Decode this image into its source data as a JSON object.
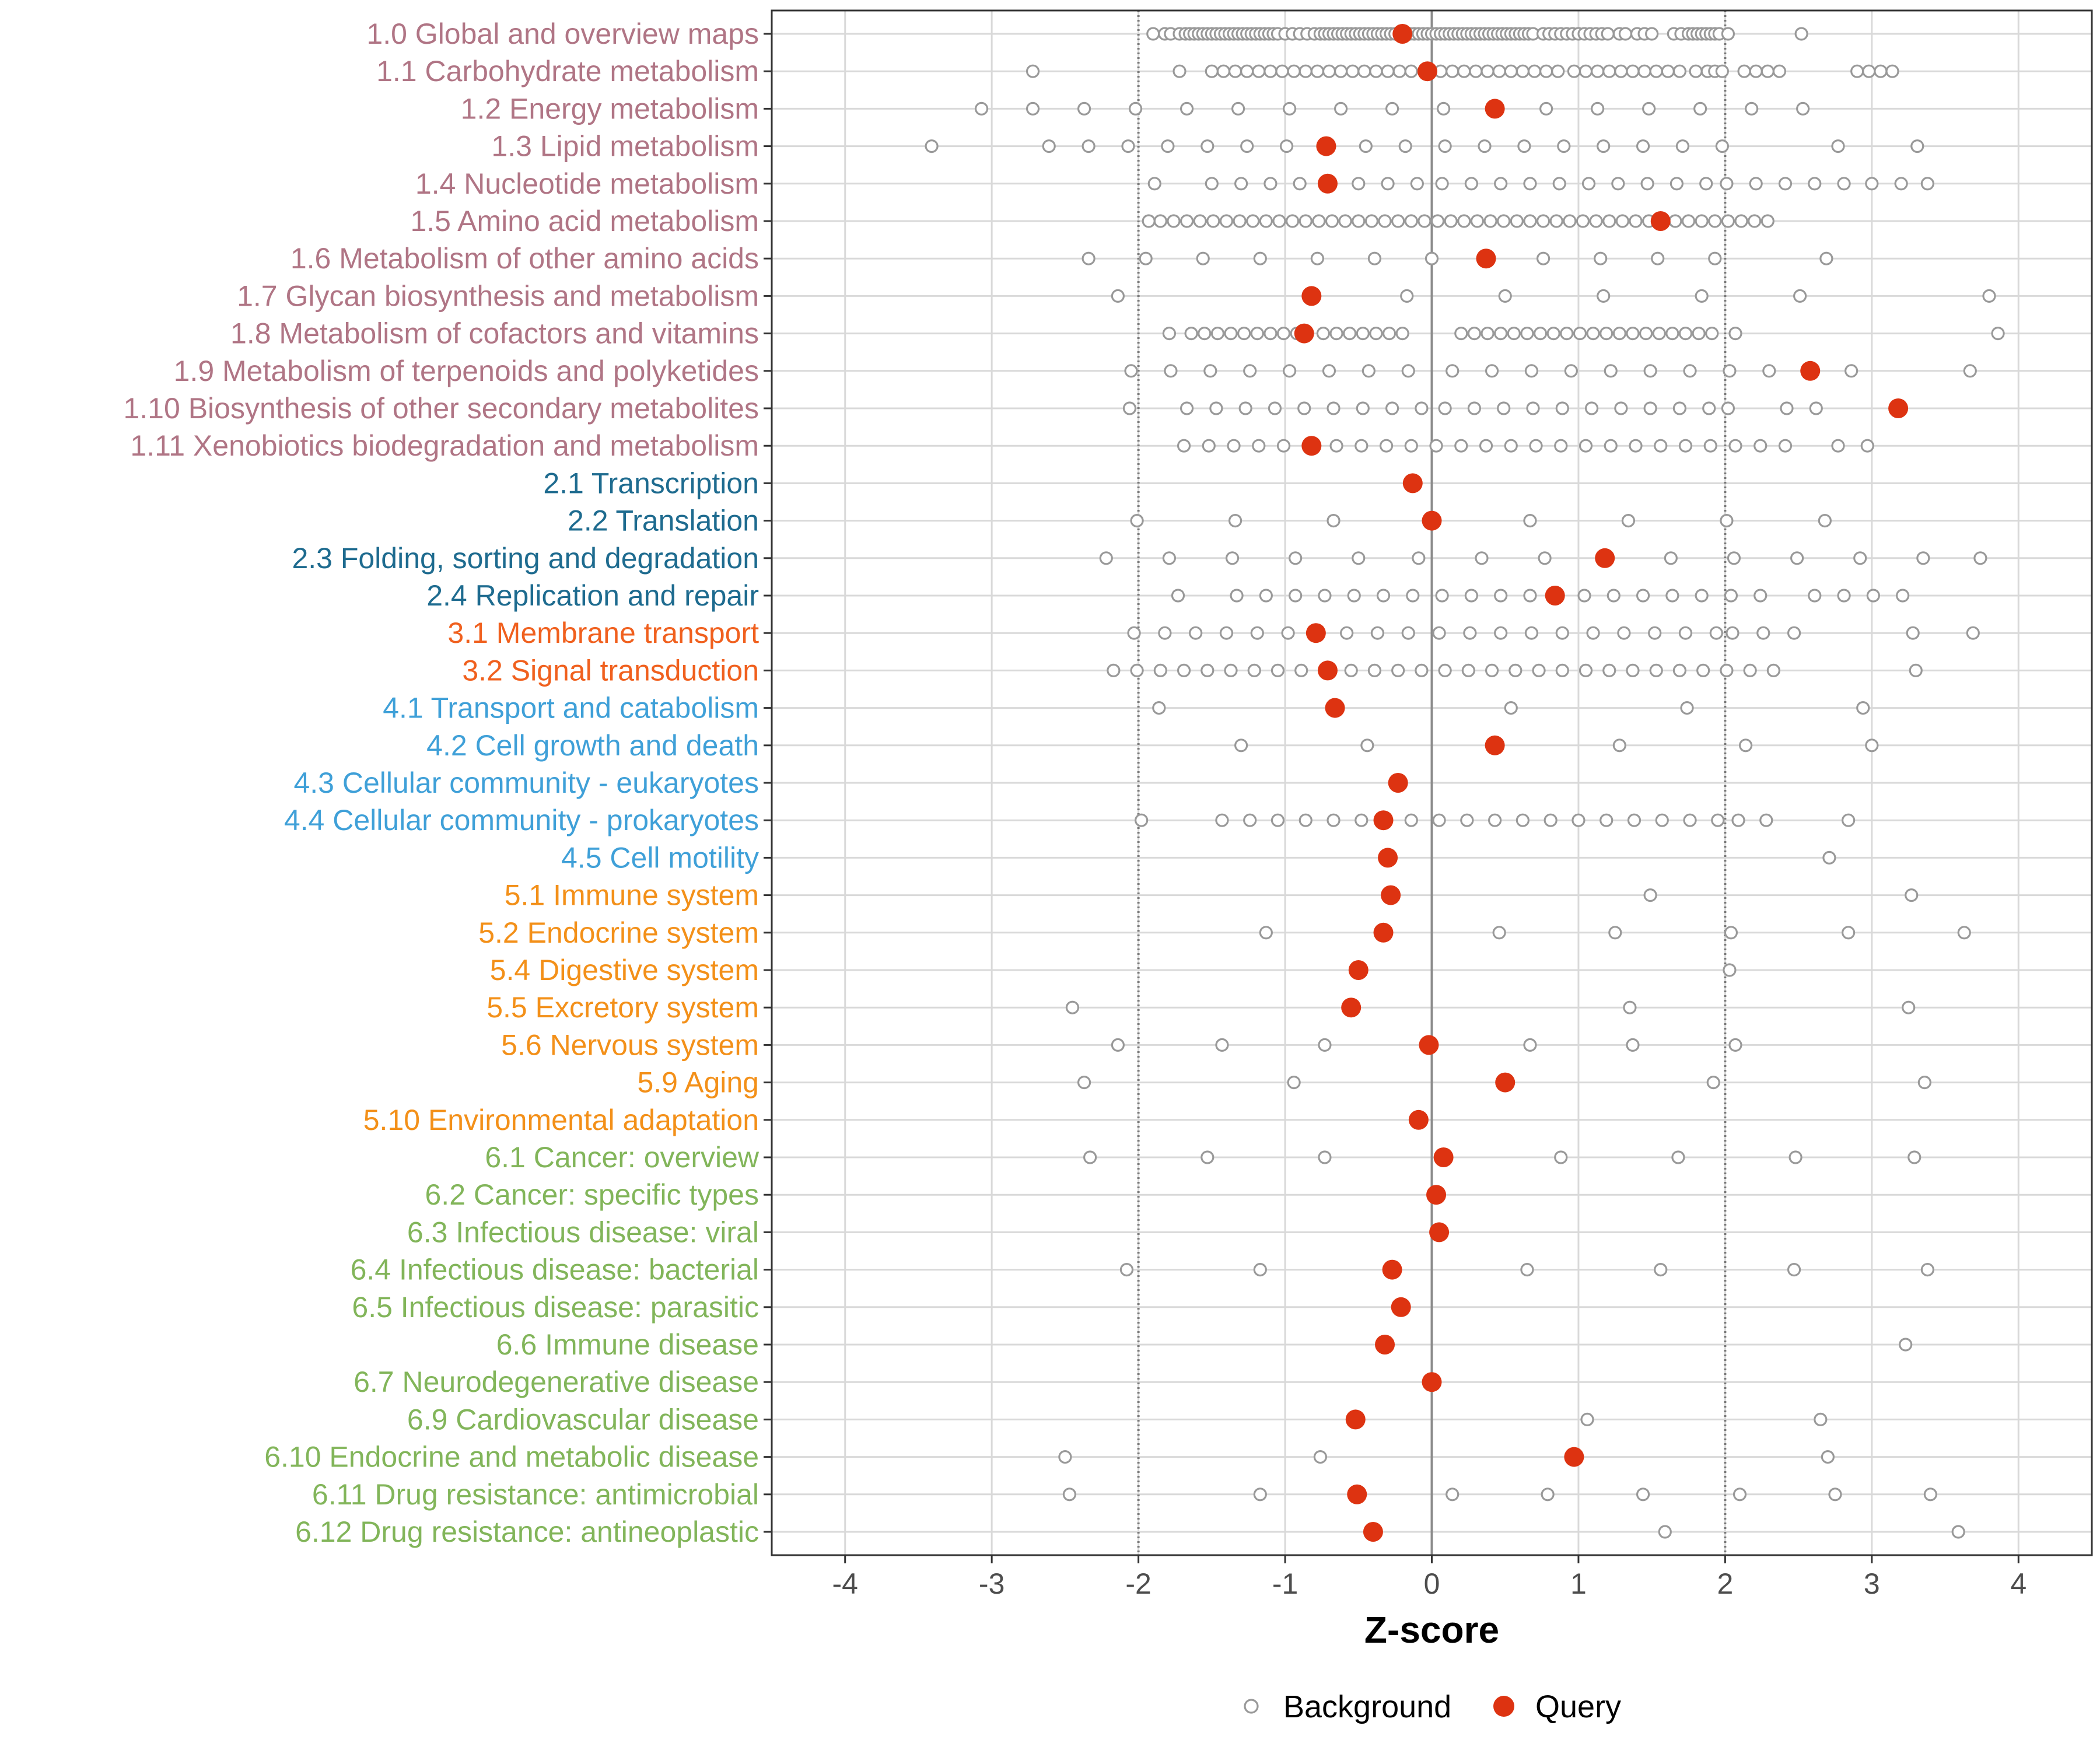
{
  "chart_data": {
    "type": "scatter",
    "xlabel": "Z-score",
    "xlim": [
      -4.5,
      4.5
    ],
    "xticks": [
      -4,
      -3,
      -2,
      -1,
      0,
      1,
      2,
      3,
      4
    ],
    "xtick_labels": [
      "-4",
      "-3",
      "-2",
      "-1",
      "0",
      "1",
      "2",
      "3",
      "4"
    ],
    "reference_lines": [
      {
        "x": -2,
        "style": "dotted"
      },
      {
        "x": 0,
        "style": "solid"
      },
      {
        "x": 2,
        "style": "dotted"
      }
    ],
    "legend": {
      "position": "bottom",
      "entries": [
        {
          "name": "Background",
          "style": "hollow-circle"
        },
        {
          "name": "Query",
          "style": "filled-circle"
        }
      ]
    },
    "colors": {
      "background_points": "#999999",
      "query_points": "#dd3311",
      "group1": "#b07585",
      "group2": "#1e6b8f",
      "group3": "#f0601e",
      "group4": "#3fa0d8",
      "group5": "#f39019",
      "group6": "#82b55a"
    },
    "categories": [
      {
        "label": "1.0 Global and overview maps",
        "group": 1,
        "query": -0.2,
        "background": [
          -1.9,
          -1.82,
          -1.78,
          -1.72,
          -1.68,
          -1.65,
          -1.62,
          -1.59,
          -1.56,
          -1.53,
          -1.5,
          -1.47,
          -1.44,
          -1.41,
          -1.38,
          -1.35,
          -1.32,
          -1.29,
          -1.26,
          -1.23,
          -1.2,
          -1.17,
          -1.14,
          -1.11,
          -1.08,
          -1.05,
          -1.0,
          -0.95,
          -0.9,
          -0.85,
          -0.8,
          -0.76,
          -0.73,
          -0.7,
          -0.67,
          -0.64,
          -0.61,
          -0.58,
          -0.55,
          -0.52,
          -0.49,
          -0.46,
          -0.43,
          -0.4,
          -0.37,
          -0.34,
          -0.31,
          -0.28,
          -0.25,
          -0.22,
          -0.15,
          -0.12,
          -0.09,
          -0.06,
          -0.03,
          0.0,
          0.03,
          0.06,
          0.09,
          0.12,
          0.15,
          0.18,
          0.21,
          0.24,
          0.27,
          0.3,
          0.33,
          0.36,
          0.39,
          0.42,
          0.45,
          0.48,
          0.51,
          0.54,
          0.57,
          0.6,
          0.63,
          0.66,
          0.69,
          0.76,
          0.8,
          0.84,
          0.88,
          0.92,
          0.96,
          1.0,
          1.04,
          1.08,
          1.12,
          1.16,
          1.2,
          1.28,
          1.32,
          1.4,
          1.45,
          1.5,
          1.65,
          1.7,
          1.75,
          1.78,
          1.81,
          1.84,
          1.87,
          1.9,
          1.93,
          1.96,
          2.02,
          2.52
        ]
      },
      {
        "label": "1.1 Carbohydrate metabolism",
        "group": 1,
        "query": -0.03,
        "background": [
          -2.72,
          -1.72,
          -1.5,
          -1.42,
          -1.34,
          -1.26,
          -1.18,
          -1.1,
          -1.02,
          -0.94,
          -0.86,
          -0.78,
          -0.7,
          -0.62,
          -0.54,
          -0.46,
          -0.38,
          -0.3,
          -0.22,
          -0.14,
          0.06,
          0.14,
          0.22,
          0.3,
          0.38,
          0.46,
          0.54,
          0.62,
          0.7,
          0.78,
          0.86,
          0.97,
          1.05,
          1.13,
          1.21,
          1.29,
          1.37,
          1.45,
          1.53,
          1.61,
          1.69,
          1.8,
          1.88,
          1.93,
          1.98,
          2.13,
          2.21,
          2.29,
          2.37,
          2.9,
          2.98,
          3.06,
          3.14
        ]
      },
      {
        "label": "1.2 Energy metabolism",
        "group": 1,
        "query": 0.43,
        "background": [
          -3.07,
          -2.72,
          -2.37,
          -2.02,
          -1.67,
          -1.32,
          -0.97,
          -0.62,
          -0.27,
          0.08,
          0.78,
          1.13,
          1.48,
          1.83,
          2.18,
          2.53
        ]
      },
      {
        "label": "1.3 Lipid metabolism",
        "group": 1,
        "query": -0.72,
        "background": [
          -3.41,
          -2.61,
          -2.34,
          -2.07,
          -1.8,
          -1.53,
          -1.26,
          -0.99,
          -0.45,
          -0.18,
          0.09,
          0.36,
          0.63,
          0.9,
          1.17,
          1.44,
          1.71,
          1.98,
          2.77,
          3.31
        ]
      },
      {
        "label": "1.4 Nucleotide metabolism",
        "group": 1,
        "query": -0.71,
        "background": [
          -1.89,
          -1.5,
          -1.3,
          -1.1,
          -0.9,
          -0.5,
          -0.3,
          -0.1,
          0.07,
          0.27,
          0.47,
          0.67,
          0.87,
          1.07,
          1.27,
          1.47,
          1.67,
          1.87,
          2.01,
          2.21,
          2.41,
          2.61,
          2.81,
          3.0,
          3.2,
          3.38
        ]
      },
      {
        "label": "1.5 Amino acid metabolism",
        "group": 1,
        "query": 1.56,
        "background": [
          -1.93,
          -1.85,
          -1.76,
          -1.67,
          -1.58,
          -1.49,
          -1.4,
          -1.31,
          -1.22,
          -1.13,
          -1.04,
          -0.95,
          -0.86,
          -0.77,
          -0.68,
          -0.59,
          -0.5,
          -0.41,
          -0.32,
          -0.23,
          -0.14,
          -0.05,
          0.04,
          0.13,
          0.22,
          0.31,
          0.4,
          0.49,
          0.58,
          0.67,
          0.76,
          0.85,
          0.94,
          1.03,
          1.12,
          1.21,
          1.3,
          1.39,
          1.48,
          1.66,
          1.75,
          1.84,
          1.93,
          2.02,
          2.11,
          2.2,
          2.29
        ]
      },
      {
        "label": "1.6 Metabolism of other amino acids",
        "group": 1,
        "query": 0.37,
        "background": [
          -2.34,
          -1.95,
          -1.56,
          -1.17,
          -0.78,
          -0.39,
          0.0,
          0.76,
          1.15,
          1.54,
          1.93,
          2.69
        ]
      },
      {
        "label": "1.7 Glycan biosynthesis and metabolism",
        "group": 1,
        "query": -0.82,
        "background": [
          -2.14,
          -0.17,
          0.5,
          1.17,
          1.84,
          2.51,
          3.8
        ]
      },
      {
        "label": "1.8 Metabolism of cofactors and vitamins",
        "group": 1,
        "query": -0.87,
        "background": [
          -1.79,
          -1.64,
          -1.55,
          -1.46,
          -1.37,
          -1.28,
          -1.19,
          -1.1,
          -1.01,
          -0.92,
          -0.74,
          -0.65,
          -0.56,
          -0.47,
          -0.38,
          -0.29,
          -0.2,
          0.2,
          0.29,
          0.38,
          0.47,
          0.56,
          0.65,
          0.74,
          0.83,
          0.92,
          1.01,
          1.1,
          1.19,
          1.28,
          1.37,
          1.46,
          1.55,
          1.64,
          1.73,
          1.82,
          1.91,
          2.07,
          3.86
        ]
      },
      {
        "label": "1.9 Metabolism of terpenoids and polyketides",
        "group": 1,
        "query": 2.58,
        "background": [
          -2.05,
          -1.78,
          -1.51,
          -1.24,
          -0.97,
          -0.7,
          -0.43,
          -0.16,
          0.14,
          0.41,
          0.68,
          0.95,
          1.22,
          1.49,
          1.76,
          2.03,
          2.3,
          2.86,
          3.67
        ]
      },
      {
        "label": "1.10 Biosynthesis of other secondary metabolites",
        "group": 1,
        "query": 3.18,
        "background": [
          -2.06,
          -1.67,
          -1.47,
          -1.27,
          -1.07,
          -0.87,
          -0.67,
          -0.47,
          -0.27,
          -0.07,
          0.09,
          0.29,
          0.49,
          0.69,
          0.89,
          1.09,
          1.29,
          1.49,
          1.69,
          1.89,
          2.02,
          2.42,
          2.62
        ]
      },
      {
        "label": "1.11 Xenobiotics biodegradation and metabolism",
        "group": 1,
        "query": -0.82,
        "background": [
          -1.69,
          -1.52,
          -1.35,
          -1.18,
          -1.01,
          -0.65,
          -0.48,
          -0.31,
          -0.14,
          0.03,
          0.2,
          0.37,
          0.54,
          0.71,
          0.88,
          1.05,
          1.22,
          1.39,
          1.56,
          1.73,
          1.9,
          2.07,
          2.24,
          2.41,
          2.77,
          2.97
        ]
      },
      {
        "label": "2.1 Transcription",
        "group": 2,
        "query": -0.13,
        "background": []
      },
      {
        "label": "2.2 Translation",
        "group": 2,
        "query": 0.0,
        "background": [
          -2.01,
          -1.34,
          -0.67,
          0.67,
          1.34,
          2.01,
          2.68
        ]
      },
      {
        "label": "2.3 Folding, sorting and degradation",
        "group": 2,
        "query": 1.18,
        "background": [
          -2.22,
          -1.79,
          -1.36,
          -0.93,
          -0.5,
          -0.09,
          0.34,
          0.77,
          1.63,
          2.06,
          2.49,
          2.92,
          3.35,
          3.74
        ]
      },
      {
        "label": "2.4 Replication and repair",
        "group": 2,
        "query": 0.84,
        "background": [
          -1.73,
          -1.33,
          -1.13,
          -0.93,
          -0.73,
          -0.53,
          -0.33,
          -0.13,
          0.07,
          0.27,
          0.47,
          0.67,
          1.04,
          1.24,
          1.44,
          1.64,
          1.84,
          2.04,
          2.24,
          2.61,
          2.81,
          3.01,
          3.21
        ]
      },
      {
        "label": "3.1 Membrane transport",
        "group": 3,
        "query": -0.79,
        "background": [
          -2.03,
          -1.82,
          -1.61,
          -1.4,
          -1.19,
          -0.98,
          -0.58,
          -0.37,
          -0.16,
          0.05,
          0.26,
          0.47,
          0.68,
          0.89,
          1.1,
          1.31,
          1.52,
          1.73,
          1.94,
          2.05,
          2.26,
          2.47,
          3.28,
          3.69
        ]
      },
      {
        "label": "3.2 Signal transduction",
        "group": 3,
        "query": -0.71,
        "background": [
          -2.17,
          -2.01,
          -1.85,
          -1.69,
          -1.53,
          -1.37,
          -1.21,
          -1.05,
          -0.89,
          -0.55,
          -0.39,
          -0.23,
          -0.07,
          0.09,
          0.25,
          0.41,
          0.57,
          0.73,
          0.89,
          1.05,
          1.21,
          1.37,
          1.53,
          1.69,
          1.85,
          2.01,
          2.17,
          2.33,
          3.3
        ]
      },
      {
        "label": "4.1 Transport and catabolism",
        "group": 4,
        "query": -0.66,
        "background": [
          -1.86,
          0.54,
          1.74,
          2.94
        ]
      },
      {
        "label": "4.2 Cell growth and death",
        "group": 4,
        "query": 0.43,
        "background": [
          -1.3,
          -0.44,
          1.28,
          2.14,
          3.0
        ]
      },
      {
        "label": "4.3 Cellular community - eukaryotes",
        "group": 4,
        "query": -0.23,
        "background": []
      },
      {
        "label": "4.4 Cellular community - prokaryotes",
        "group": 4,
        "query": -0.33,
        "background": [
          -1.98,
          -1.43,
          -1.24,
          -1.05,
          -0.86,
          -0.67,
          -0.48,
          -0.14,
          0.05,
          0.24,
          0.43,
          0.62,
          0.81,
          1.0,
          1.19,
          1.38,
          1.57,
          1.76,
          1.95,
          2.09,
          2.28,
          2.84
        ]
      },
      {
        "label": "4.5 Cell motility",
        "group": 4,
        "query": -0.3,
        "background": [
          2.71
        ]
      },
      {
        "label": "5.1 Immune system",
        "group": 5,
        "query": -0.28,
        "background": [
          1.49,
          3.27
        ]
      },
      {
        "label": "5.2 Endocrine system",
        "group": 5,
        "query": -0.33,
        "background": [
          -1.13,
          0.46,
          1.25,
          2.04,
          2.84,
          3.63
        ]
      },
      {
        "label": "5.4 Digestive system",
        "group": 5,
        "query": -0.5,
        "background": [
          2.03
        ]
      },
      {
        "label": "5.5 Excretory system",
        "group": 5,
        "query": -0.55,
        "background": [
          -2.45,
          1.35,
          3.25
        ]
      },
      {
        "label": "5.6 Nervous system",
        "group": 5,
        "query": -0.02,
        "background": [
          -2.14,
          -1.43,
          -0.73,
          0.67,
          1.37,
          2.07
        ]
      },
      {
        "label": "5.9 Aging",
        "group": 5,
        "query": 0.5,
        "background": [
          -2.37,
          -0.94,
          1.92,
          3.36
        ]
      },
      {
        "label": "5.10 Environmental adaptation",
        "group": 5,
        "query": -0.09,
        "background": []
      },
      {
        "label": "6.1 Cancer: overview",
        "group": 6,
        "query": 0.08,
        "background": [
          -2.33,
          -1.53,
          -0.73,
          0.88,
          1.68,
          2.48,
          3.29
        ]
      },
      {
        "label": "6.2 Cancer: specific types",
        "group": 6,
        "query": 0.03,
        "background": []
      },
      {
        "label": "6.3 Infectious disease: viral",
        "group": 6,
        "query": 0.05,
        "background": []
      },
      {
        "label": "6.4 Infectious disease: bacterial",
        "group": 6,
        "query": -0.27,
        "background": [
          -2.08,
          -1.17,
          0.65,
          1.56,
          2.47,
          3.38
        ]
      },
      {
        "label": "6.5 Infectious disease: parasitic",
        "group": 6,
        "query": -0.21,
        "background": []
      },
      {
        "label": "6.6 Immune disease",
        "group": 6,
        "query": -0.32,
        "background": [
          3.23
        ]
      },
      {
        "label": "6.7 Neurodegenerative disease",
        "group": 6,
        "query": 0.0,
        "background": []
      },
      {
        "label": "6.9 Cardiovascular disease",
        "group": 6,
        "query": -0.52,
        "background": [
          1.06,
          2.65
        ]
      },
      {
        "label": "6.10 Endocrine and metabolic disease",
        "group": 6,
        "query": 0.97,
        "background": [
          -2.5,
          -0.76,
          2.7
        ]
      },
      {
        "label": "6.11 Drug resistance: antimicrobial",
        "group": 6,
        "query": -0.51,
        "background": [
          -2.47,
          -1.17,
          0.14,
          0.79,
          1.44,
          2.1,
          2.75,
          3.4
        ]
      },
      {
        "label": "6.12 Drug resistance: antineoplastic",
        "group": 6,
        "query": -0.4,
        "background": [
          1.59,
          3.59
        ]
      }
    ]
  }
}
